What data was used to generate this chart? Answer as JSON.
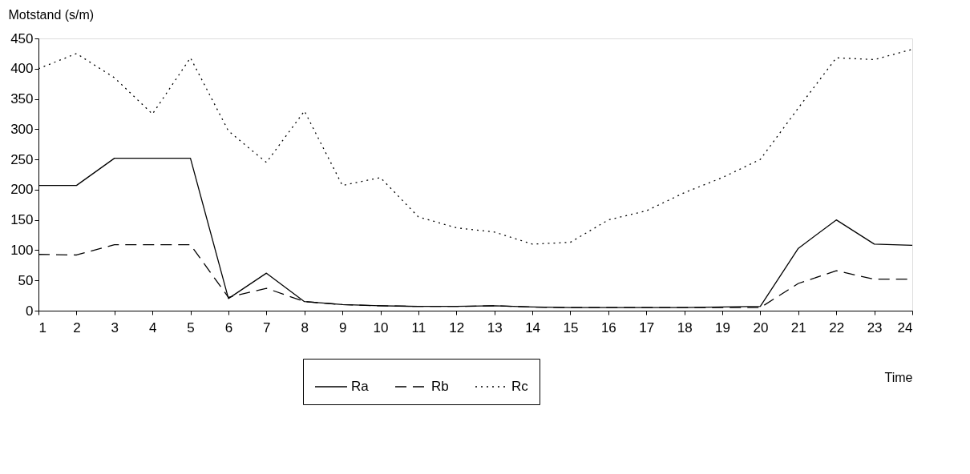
{
  "chart_data": {
    "type": "line",
    "ylabel": "Motstand (s/m)",
    "xlabel": "Time",
    "x": [
      1,
      2,
      3,
      4,
      5,
      6,
      7,
      8,
      9,
      10,
      11,
      12,
      13,
      14,
      15,
      16,
      17,
      18,
      19,
      20,
      21,
      22,
      23,
      24
    ],
    "xlim": [
      1,
      24
    ],
    "xticks": [
      1,
      2,
      3,
      4,
      5,
      6,
      7,
      8,
      9,
      10,
      11,
      12,
      13,
      14,
      15,
      16,
      17,
      18,
      19,
      20,
      21,
      22,
      23,
      24
    ],
    "ylim": [
      0,
      450
    ],
    "yticks": [
      0,
      50,
      100,
      150,
      200,
      250,
      300,
      350,
      400,
      450
    ],
    "grid": false,
    "legend": "bottom",
    "marker": "none",
    "series": [
      {
        "name": "Ra",
        "color": "#000000",
        "line_style": "solid",
        "values": [
          207,
          207,
          252,
          252,
          252,
          20,
          62,
          15,
          10,
          8,
          7,
          7,
          8,
          6,
          5,
          5,
          5,
          5,
          6,
          7,
          103,
          150,
          110,
          108
        ]
      },
      {
        "name": "Rb",
        "color": "#000000",
        "line_style": "dashed",
        "values": [
          93,
          92,
          109,
          109,
          109,
          22,
          37,
          15,
          10,
          8,
          7,
          7,
          8,
          6,
          5,
          5,
          5,
          5,
          5,
          5,
          45,
          66,
          52,
          52
        ]
      },
      {
        "name": "Rc",
        "color": "#000000",
        "line_style": "dotted",
        "values": [
          400,
          425,
          385,
          325,
          418,
          297,
          245,
          330,
          207,
          220,
          155,
          137,
          130,
          110,
          113,
          150,
          165,
          195,
          220,
          250,
          335,
          418,
          415,
          432
        ]
      }
    ]
  }
}
